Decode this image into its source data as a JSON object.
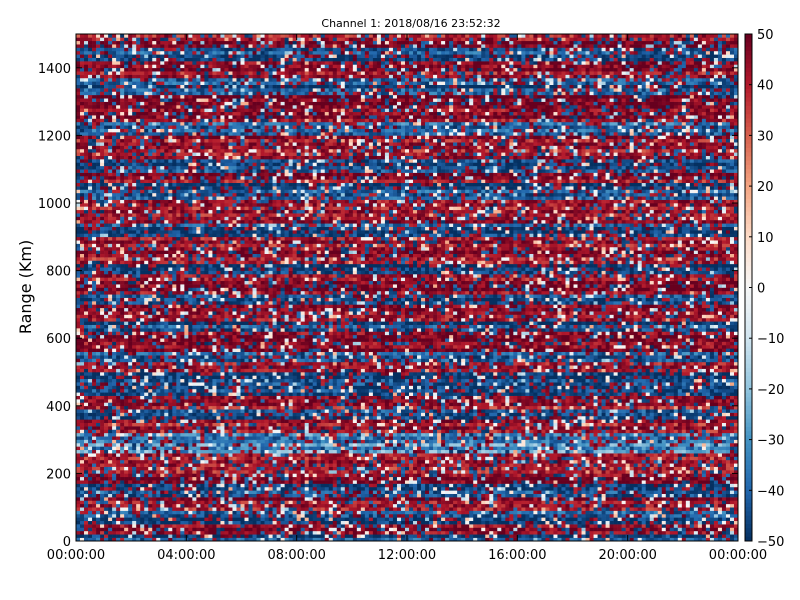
{
  "chart_data": {
    "type": "heatmap",
    "title": "Channel 1: 2018/08/16 23:52:32",
    "xlabel": "",
    "ylabel": "Range (Km)",
    "x_ticks": [
      "00:00:00",
      "04:00:00",
      "08:00:00",
      "12:00:00",
      "16:00:00",
      "20:00:00",
      "00:00:00"
    ],
    "x_range_hours": [
      0,
      24
    ],
    "y_ticks": [
      0,
      200,
      400,
      600,
      800,
      1000,
      1200,
      1400
    ],
    "y_range": [
      0,
      1500
    ],
    "colorbar": {
      "range": [
        -50,
        50
      ],
      "ticks": [
        50,
        40,
        30,
        20,
        10,
        0,
        -10,
        -20,
        -30,
        -40,
        -50
      ],
      "tick_labels": [
        "50",
        "40",
        "30",
        "20",
        "10",
        "0",
        "−10",
        "−20",
        "−30",
        "−40",
        "−50"
      ],
      "colormap": "RdBu_r",
      "colors": [
        "#053061",
        "#2166ac",
        "#4393c3",
        "#92c5de",
        "#d1e5f0",
        "#f7f7f7",
        "#fddbc7",
        "#f4a582",
        "#d6604d",
        "#b2182b",
        "#67001f"
      ]
    },
    "grid": false,
    "bands": [
      {
        "y": [
          0,
          20
        ],
        "value": -45
      },
      {
        "y": [
          20,
          50
        ],
        "value": 45
      },
      {
        "y": [
          50,
          90
        ],
        "value": -45
      },
      {
        "y": [
          90,
          130
        ],
        "value": 45
      },
      {
        "y": [
          130,
          170
        ],
        "value": -45
      },
      {
        "y": [
          170,
          260
        ],
        "value": 45
      },
      {
        "y": [
          260,
          320
        ],
        "value": -30
      },
      {
        "y": [
          320,
          360
        ],
        "value": 45
      },
      {
        "y": [
          360,
          390
        ],
        "value": -45
      },
      {
        "y": [
          390,
          430
        ],
        "value": 45
      },
      {
        "y": [
          430,
          500
        ],
        "value": -48
      },
      {
        "y": [
          500,
          530
        ],
        "value": 45
      },
      {
        "y": [
          530,
          560
        ],
        "value": -40
      },
      {
        "y": [
          560,
          620
        ],
        "value": 45
      },
      {
        "y": [
          620,
          650
        ],
        "value": -45
      },
      {
        "y": [
          650,
          700
        ],
        "value": 45
      },
      {
        "y": [
          700,
          730
        ],
        "value": -45
      },
      {
        "y": [
          730,
          790
        ],
        "value": 45
      },
      {
        "y": [
          790,
          820
        ],
        "value": -48
      },
      {
        "y": [
          820,
          900
        ],
        "value": 45
      },
      {
        "y": [
          900,
          940
        ],
        "value": -45
      },
      {
        "y": [
          940,
          1010
        ],
        "value": 45
      },
      {
        "y": [
          1010,
          1060
        ],
        "value": -45
      },
      {
        "y": [
          1060,
          1090
        ],
        "value": 45
      },
      {
        "y": [
          1090,
          1130
        ],
        "value": -45
      },
      {
        "y": [
          1130,
          1200
        ],
        "value": 45
      },
      {
        "y": [
          1200,
          1240
        ],
        "value": -40
      },
      {
        "y": [
          1240,
          1320
        ],
        "value": 48
      },
      {
        "y": [
          1320,
          1370
        ],
        "value": -45
      },
      {
        "y": [
          1370,
          1420
        ],
        "value": 45
      },
      {
        "y": [
          1420,
          1460
        ],
        "value": -45
      },
      {
        "y": [
          1460,
          1500
        ],
        "value": 45
      }
    ]
  }
}
